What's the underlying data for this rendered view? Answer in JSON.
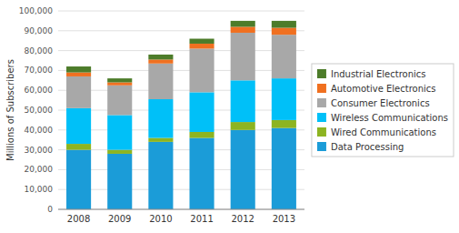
{
  "chart_data": {
    "type": "bar",
    "stacked": true,
    "ylabel": "Millions of Subscribers",
    "categories": [
      "2008",
      "2009",
      "2010",
      "2011",
      "2012",
      "2013"
    ],
    "series": [
      {
        "name": "Data Processing",
        "color": "#1B9CD8",
        "values": [
          30000,
          28000,
          34000,
          36000,
          40000,
          41000
        ]
      },
      {
        "name": "Wired Communications",
        "color": "#8DB421",
        "values": [
          3000,
          2000,
          2000,
          3000,
          4000,
          4000
        ]
      },
      {
        "name": "Wireless Communications",
        "color": "#00C0F8",
        "values": [
          18000,
          17500,
          19500,
          20000,
          21000,
          21000
        ]
      },
      {
        "name": "Consumer Electronics",
        "color": "#A8A8A8",
        "values": [
          16000,
          15000,
          18000,
          22000,
          24000,
          22000
        ]
      },
      {
        "name": "Automotive Electronics",
        "color": "#F07020",
        "values": [
          2000,
          1500,
          2000,
          2500,
          3000,
          3500
        ]
      },
      {
        "name": "Industrial Electronics",
        "color": "#4D7C2A",
        "values": [
          3000,
          2000,
          2500,
          2500,
          3000,
          3500
        ]
      }
    ],
    "ylim": [
      0,
      100000
    ],
    "yticks": [
      0,
      {
        "value": 10000,
        "label": "10,000"
      },
      {
        "value": 20000,
        "label": "20,000"
      },
      {
        "value": 30000,
        "label": "30,000"
      },
      {
        "value": 40000,
        "label": "40,000"
      },
      {
        "value": 50000,
        "label": "50,000"
      },
      {
        "value": 60000,
        "label": "60,000"
      },
      {
        "value": 70000,
        "label": "70,000"
      },
      {
        "value": 80000,
        "label": "80,000"
      },
      {
        "value": 90000,
        "label": "90,000"
      },
      {
        "value": 100000,
        "label": "100,000"
      }
    ],
    "grid": true,
    "legend": "right"
  }
}
